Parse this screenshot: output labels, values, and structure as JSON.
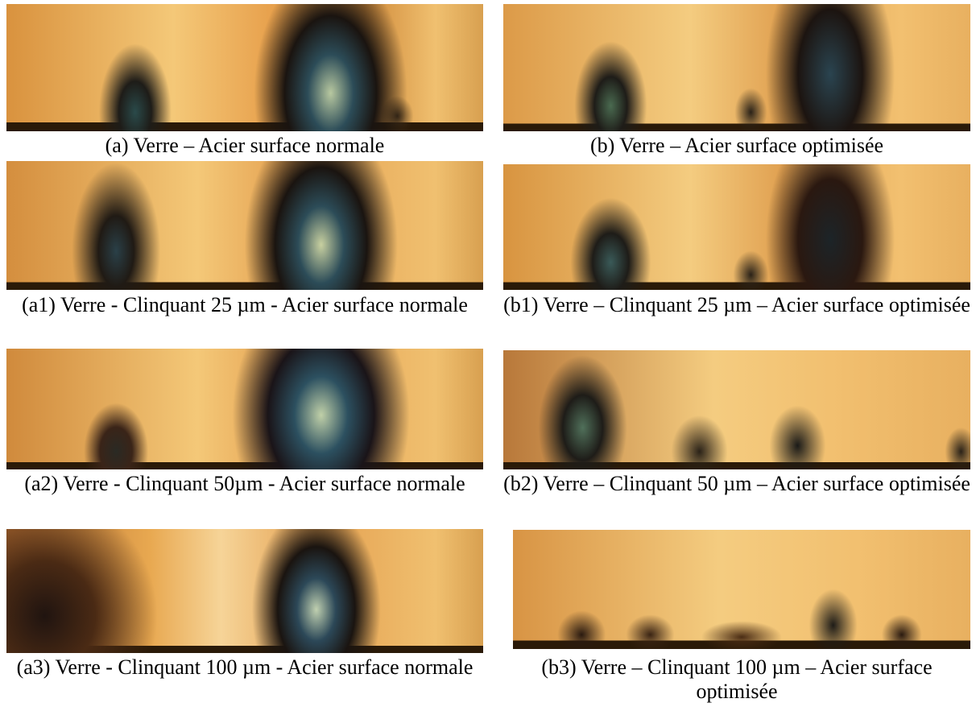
{
  "panels": [
    {
      "caption": "(a)  Verre – Acier surface normale"
    },
    {
      "caption": "(b)  Verre – Acier surface optimisée"
    },
    {
      "caption": "(a1) Verre - Clinquant 25 µm - Acier surface normale"
    },
    {
      "caption": "(b1) Verre – Clinquant 25 µm – Acier surface optimisée"
    },
    {
      "caption": "(a2) Verre - Clinquant 50µm - Acier surface normale"
    },
    {
      "caption": "(b2) Verre – Clinquant 50 µm – Acier surface optimisée"
    },
    {
      "caption": "(a3) Verre - Clinquant 100 µm - Acier surface normale"
    },
    {
      "caption": "(b3) Verre – Clinquant 100 µm – Acier surface optimisée"
    }
  ]
}
